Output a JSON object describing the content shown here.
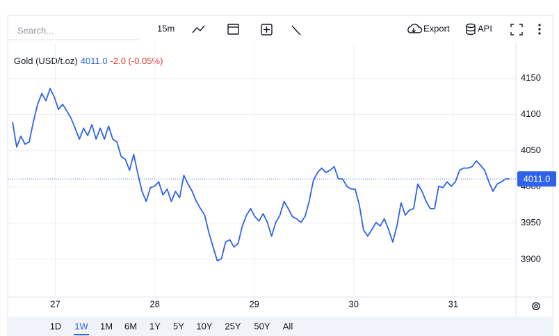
{
  "toolbar": {
    "search_placeholder": "Search...",
    "interval": "15m",
    "export": "Export",
    "api": "API"
  },
  "ranges": [
    "1D",
    "1W",
    "1M",
    "6M",
    "1Y",
    "5Y",
    "10Y",
    "25Y",
    "50Y",
    "All"
  ],
  "active_range_index": 1,
  "chart_data": {
    "type": "line",
    "legend_price": "4011.0",
    "legend_change": "-2.0 (-0.05%)",
    "last_price": {
      "value": 4011,
      "label": "4011.0"
    },
    "xlim": [
      26.57,
      31.63
    ],
    "xticks": [
      27,
      28,
      29,
      30,
      31
    ],
    "ylim": [
      3848,
      4186
    ],
    "yticks": [
      3900,
      3950,
      4000,
      4050,
      4100,
      4150
    ],
    "grid": true,
    "x": [
      26.57,
      26.612,
      26.654,
      26.696,
      26.738,
      26.78,
      26.822,
      26.864,
      26.906,
      26.948,
      26.99,
      27.032,
      27.074,
      27.116,
      27.158,
      27.2,
      27.242,
      27.284,
      27.326,
      27.368,
      27.41,
      27.452,
      27.494,
      27.536,
      27.578,
      27.62,
      27.662,
      27.704,
      27.746,
      27.788,
      27.83,
      27.872,
      27.914,
      27.956,
      27.998,
      28.04,
      28.082,
      28.124,
      28.166,
      28.208,
      28.25,
      28.292,
      28.334,
      28.376,
      28.418,
      28.46,
      28.502,
      28.544,
      28.586,
      28.628,
      28.67,
      28.712,
      28.754,
      28.796,
      28.838,
      28.88,
      28.922,
      28.964,
      29.006,
      29.048,
      29.09,
      29.132,
      29.174,
      29.216,
      29.258,
      29.3,
      29.342,
      29.384,
      29.426,
      29.468,
      29.51,
      29.552,
      29.594,
      29.636,
      29.678,
      29.72,
      29.762,
      29.804,
      29.846,
      29.888,
      29.93,
      29.972,
      30.014,
      30.056,
      30.098,
      30.14,
      30.182,
      30.224,
      30.266,
      30.308,
      30.35,
      30.392,
      30.434,
      30.476,
      30.518,
      30.56,
      30.602,
      30.644,
      30.686,
      30.728,
      30.77,
      30.812,
      30.854,
      30.896,
      30.938,
      30.98,
      31.022,
      31.064,
      31.106,
      31.148,
      31.19,
      31.232,
      31.274,
      31.316,
      31.358,
      31.4,
      31.442,
      31.484,
      31.526,
      31.568
    ],
    "series": [
      {
        "name": "Gold (USD/t.oz)",
        "color": "#2e62e8",
        "values": [
          4090,
          4055,
          4070,
          4059,
          4062,
          4090,
          4114,
          4129,
          4119,
          4136,
          4124,
          4107,
          4114,
          4105,
          4095,
          4081,
          4066,
          4081,
          4071,
          4086,
          4066,
          4081,
          4066,
          4084,
          4066,
          4062,
          4042,
          4038,
          4023,
          4045,
          4018,
          3994,
          3980,
          3999,
          4001,
          4007,
          3989,
          3997,
          3980,
          3994,
          3985,
          4016,
          4004,
          3994,
          3980,
          3970,
          3961,
          3937,
          3917,
          3898,
          3901,
          3924,
          3927,
          3917,
          3922,
          3946,
          3961,
          3970,
          3959,
          3953,
          3963,
          3951,
          3932,
          3951,
          3961,
          3980,
          3970,
          3959,
          3956,
          3951,
          3959,
          3980,
          4009,
          4020,
          4026,
          4020,
          4023,
          4028,
          4011,
          4011,
          4001,
          3997,
          3997,
          3975,
          3941,
          3932,
          3941,
          3951,
          3946,
          3956,
          3941,
          3924,
          3946,
          3978,
          3961,
          3968,
          3970,
          4004,
          3994,
          3980,
          3970,
          3970,
          4001,
          3999,
          4007,
          4001,
          4007,
          4023,
          4026,
          4026,
          4028,
          4036,
          4030,
          4023,
          4007,
          3994,
          4004,
          4007,
          4011,
          4011
        ]
      }
    ]
  }
}
